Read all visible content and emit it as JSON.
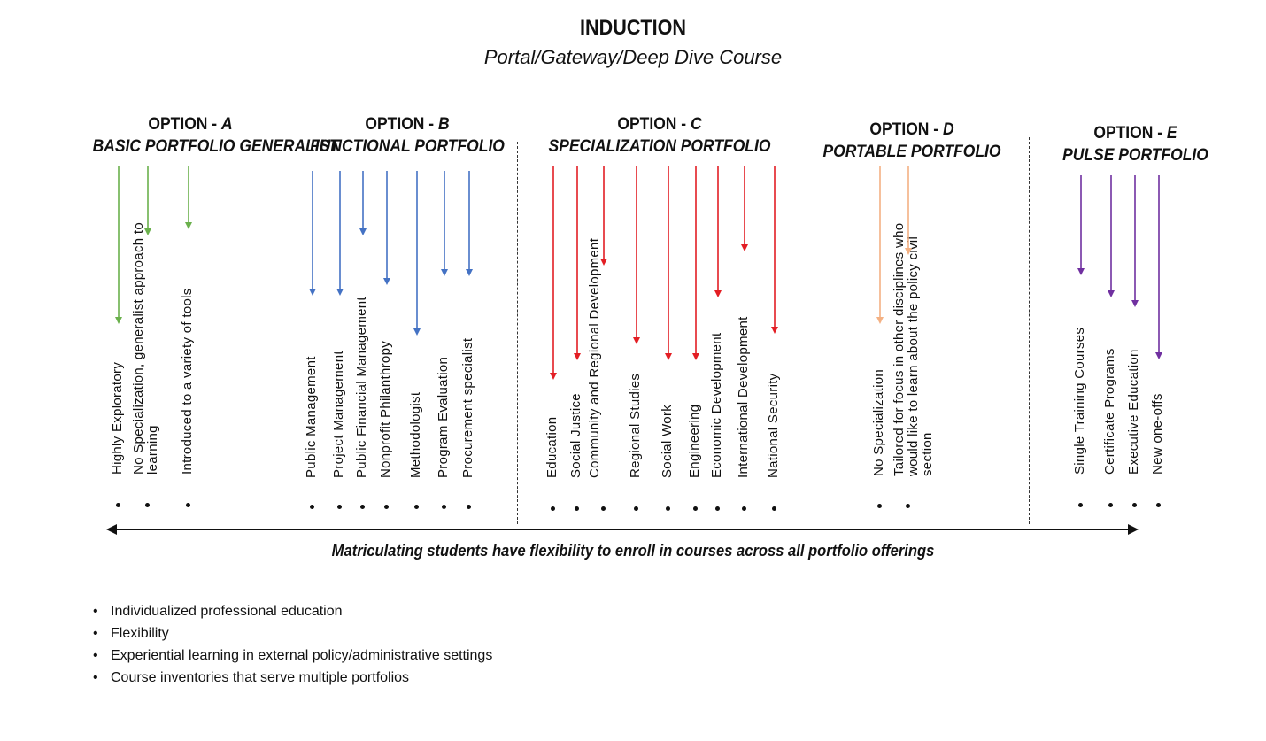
{
  "title": "INDUCTION",
  "subtitle": "Portal/Gateway/Deep Dive Course",
  "colors": {
    "A": "#6ab04c",
    "B": "#4472c4",
    "C": "#e31e24",
    "D": "#f4b183",
    "E": "#7030a0"
  },
  "options": [
    {
      "key": "A",
      "prefix": "OPTION - ",
      "letter": "A",
      "subtitle": "BASIC PORTFOLIO GENERALIST",
      "items": [
        "Highly Exploratory",
        "No Specialization, generalist approach to learning",
        "Introduced to a variety of tools"
      ]
    },
    {
      "key": "B",
      "prefix": "OPTION - ",
      "letter": "B",
      "subtitle": "FUNCTIONAL PORTFOLIO",
      "items": [
        "Public Management",
        "Project Management",
        "Public Financial Management",
        "Nonprofit Philanthropy",
        "Methodologist",
        "Program Evaluation",
        "Procurement specialist"
      ]
    },
    {
      "key": "C",
      "prefix": "OPTION - ",
      "letter": "C",
      "subtitle": "SPECIALIZATION PORTFOLIO",
      "items": [
        "Education",
        "Social Justice",
        "Community and Regional Development",
        "Regional Studies",
        "Social Work",
        "Engineering",
        "Economic Development",
        "International Development",
        "National Security"
      ]
    },
    {
      "key": "D",
      "prefix": "OPTION - ",
      "letter": "D",
      "subtitle": "PORTABLE PORTFOLIO",
      "items": [
        "No Specialization",
        "Tailored for focus in other disciplines who would like to learn about the policy civil section"
      ]
    },
    {
      "key": "E",
      "prefix": "OPTION - ",
      "letter": "E",
      "subtitle": "PULSE  PORTFOLIO",
      "items": [
        "Single Training Courses",
        "Certificate Programs",
        "Executive Education",
        "New one-offs"
      ]
    }
  ],
  "footer_note": "Matriculating students have flexibility to enroll in courses across all portfolio offerings",
  "bullets": [
    "Individualized professional education",
    "Flexibility",
    "Experiential learning in external policy/administrative  settings",
    "Course inventories that serve multiple portfolios"
  ]
}
